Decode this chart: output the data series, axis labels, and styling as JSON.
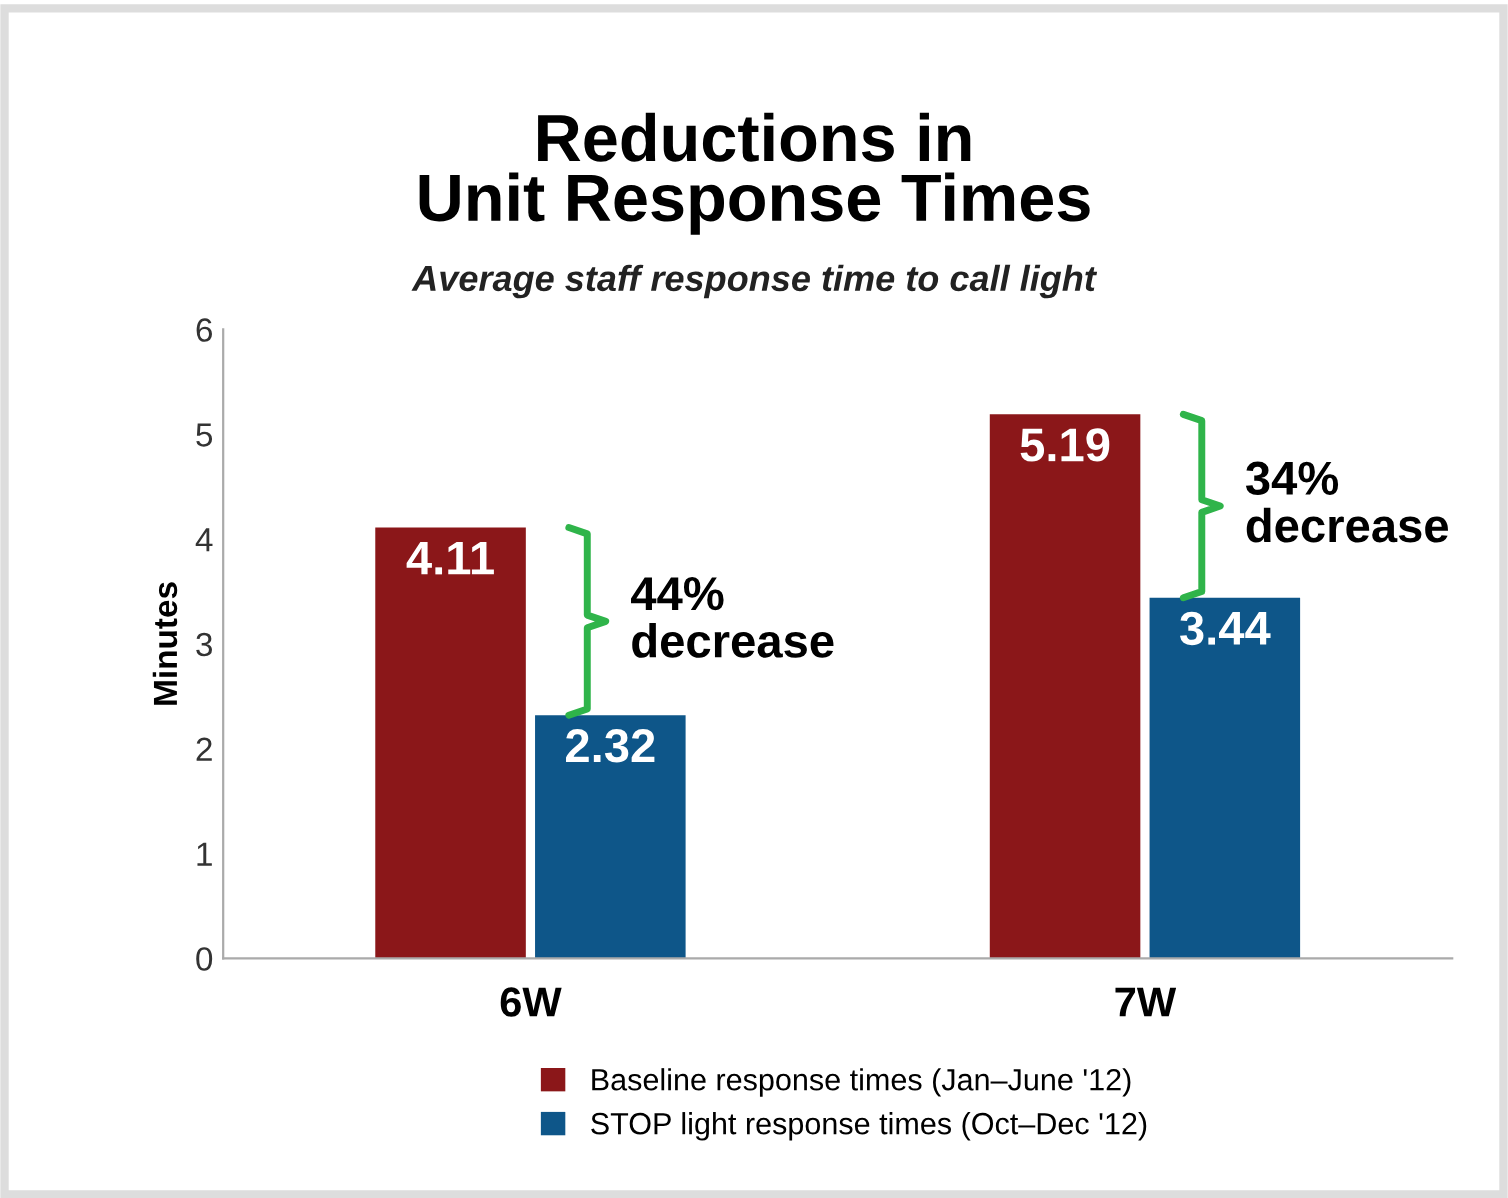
{
  "chart_data": {
    "type": "bar",
    "title": "Reductions in\nUnit Response Times",
    "subtitle": "Average staff response time to call light",
    "ylabel": "Minutes",
    "categories": [
      "6W",
      "7W"
    ],
    "series": [
      {
        "name": "Baseline response times (Jan–June '12)",
        "color": "#8b1719",
        "values": [
          4.11,
          5.19
        ]
      },
      {
        "name": "STOP light response times (Oct–Dec '12)",
        "color": "#0e5689",
        "values": [
          2.32,
          3.44
        ]
      }
    ],
    "ylim": [
      0,
      6
    ],
    "yticks": [
      0,
      1,
      2,
      3,
      4,
      5,
      6
    ],
    "grid": false,
    "legend": "bottom",
    "data_labels": true,
    "annotations": [
      {
        "text": "44%\ndecrease",
        "x": "6W",
        "y": 3.215
      },
      {
        "text": "34%\ndecrease",
        "x": "7W",
        "y": 4.315
      }
    ]
  }
}
